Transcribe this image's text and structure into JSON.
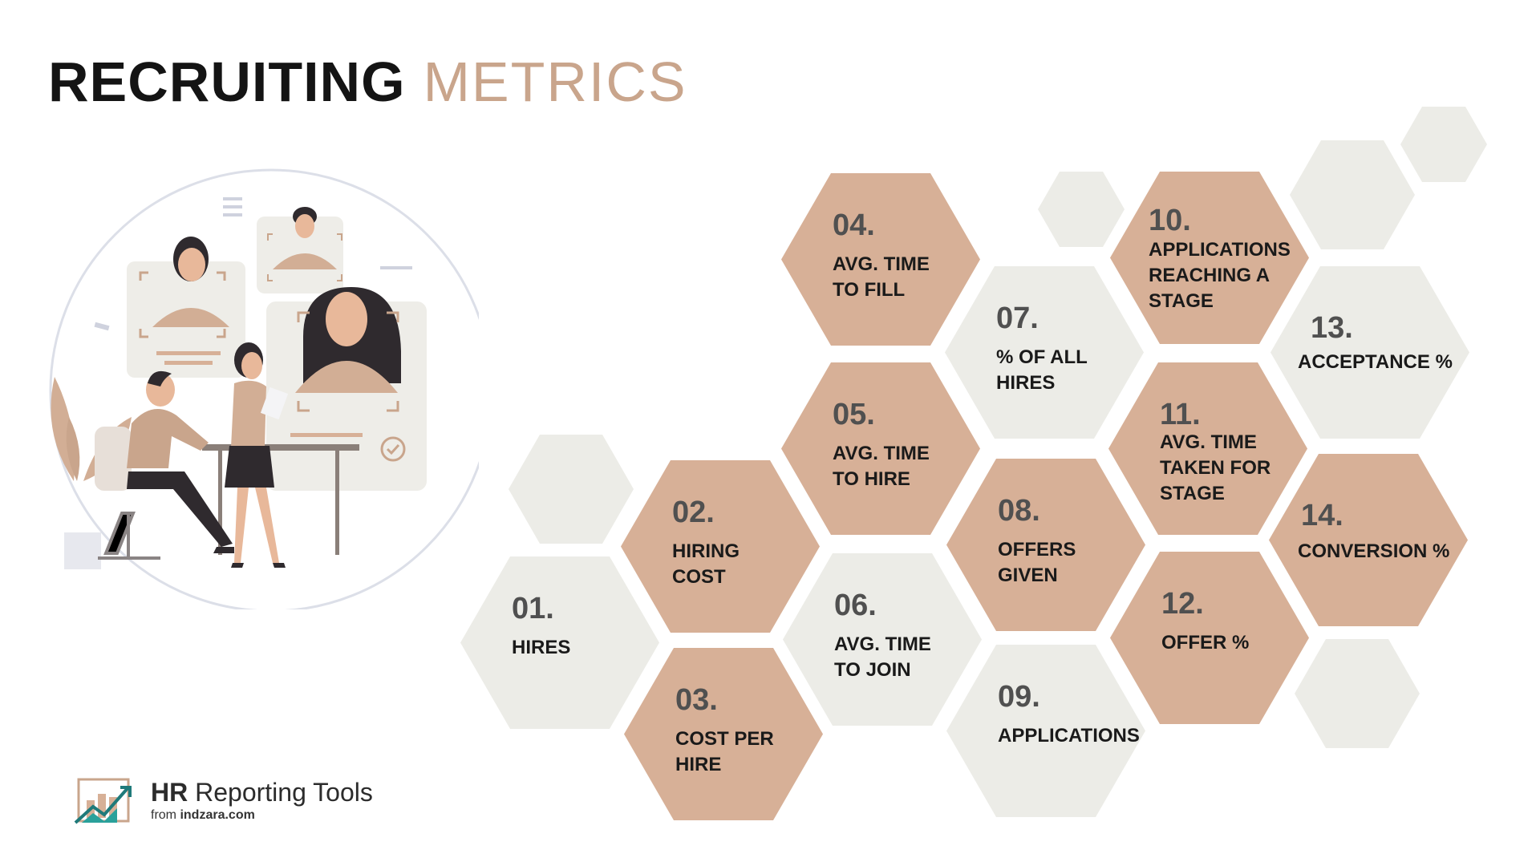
{
  "title": {
    "bold": "RECRUITING",
    "light": "METRICS"
  },
  "metrics": [
    {
      "number": "01.",
      "label": "HIRES"
    },
    {
      "number": "02.",
      "label": "HIRING COST"
    },
    {
      "number": "03.",
      "label": "COST PER HIRE"
    },
    {
      "number": "04.",
      "label": "AVG. TIME TO FILL"
    },
    {
      "number": "05.",
      "label": "AVG. TIME TO HIRE"
    },
    {
      "number": "06.",
      "label": "AVG. TIME TO JOIN"
    },
    {
      "number": "07.",
      "label": "% OF ALL HIRES"
    },
    {
      "number": "08.",
      "label": "OFFERS GIVEN"
    },
    {
      "number": "09.",
      "label": "APPLICATIONS"
    },
    {
      "number": "10.",
      "label": "APPLICATIONS REACHING A STAGE"
    },
    {
      "number": "11.",
      "label": "AVG. TIME TAKEN FOR STAGE"
    },
    {
      "number": "12.",
      "label": "OFFER %"
    },
    {
      "number": "13.",
      "label": "ACCEPTANCE %"
    },
    {
      "number": "14.",
      "label": "CONVERSION %"
    }
  ],
  "logo": {
    "bold": "HR",
    "text": "Reporting Tools",
    "from": "from",
    "site": "indzara.com"
  },
  "colors": {
    "accent_brown": "#d7b097",
    "neutral_gray": "#ecece7",
    "title_light": "#c9a58c",
    "title_dark": "#141414"
  }
}
